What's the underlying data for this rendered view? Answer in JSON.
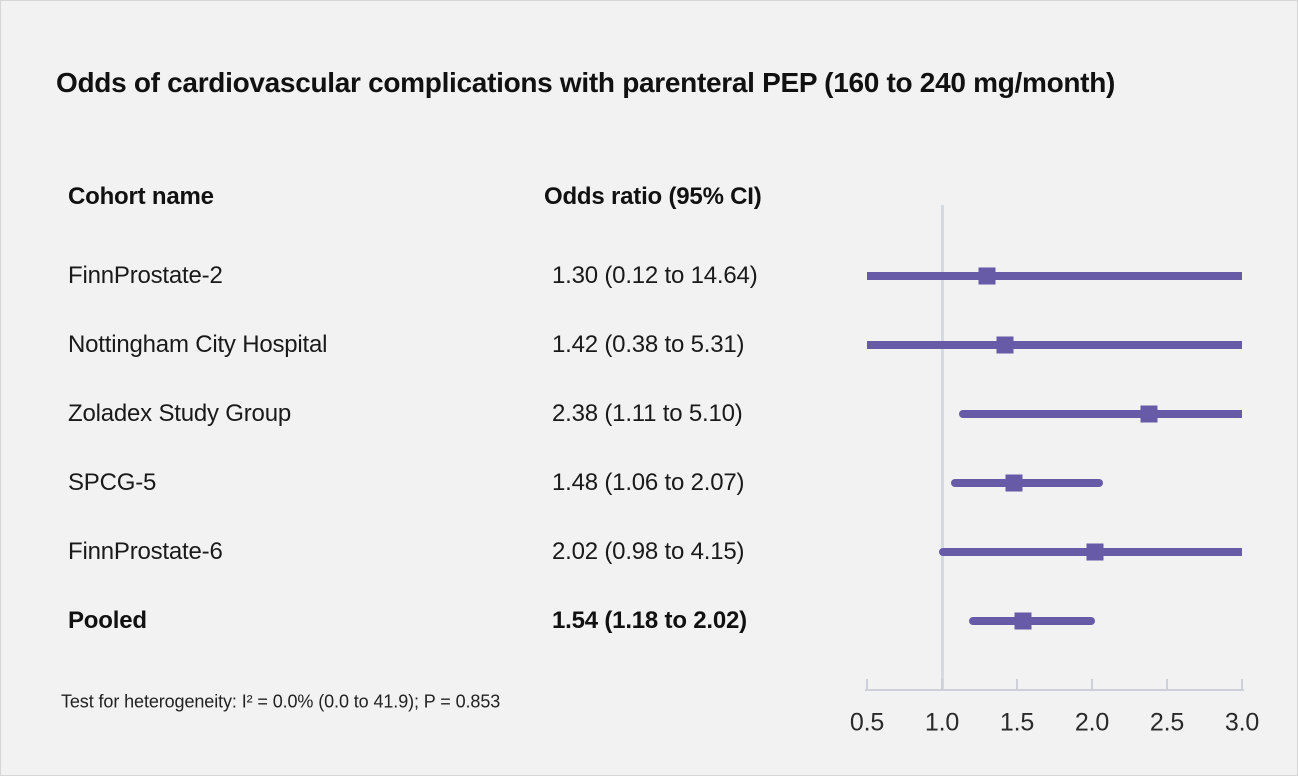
{
  "figure": {
    "footnote": "Test for heterogeneity: I² = 0.0% (0.0 to 41.9); P = 0.853"
  },
  "table": {
    "cohort_header": "Cohort name",
    "or_header": "Odds ratio (95% CI)"
  },
  "colors": {
    "accent_purple": "#675ba7",
    "reference_line": "#d5d9e2",
    "axis_line": "#cdd0d8",
    "background": "#f2f2f2",
    "text": "#1a1a1a"
  },
  "chart_data": {
    "type": "scatter",
    "subtype": "forest-plot",
    "title": "Odds of cardiovascular complications with parenteral PEP (160 to 240 mg/month)",
    "xlabel": "",
    "ylabel": "",
    "xlim": [
      0.5,
      3.0
    ],
    "x_ticks": [
      0.5,
      1.0,
      1.5,
      2.0,
      2.5,
      3.0
    ],
    "x_tick_labels": [
      "0.5",
      "1.0",
      "1.5",
      "2.0",
      "2.5",
      "3.0"
    ],
    "reference_line_x": 1.0,
    "grid": false,
    "legend": "none",
    "marker": "square",
    "studies": [
      {
        "name": "FinnProstate-2",
        "or": 1.3,
        "ci_low": 0.12,
        "ci_high": 14.64,
        "label": "1.30 (0.12 to 14.64)",
        "pooled": false
      },
      {
        "name": "Nottingham City Hospital",
        "or": 1.42,
        "ci_low": 0.38,
        "ci_high": 5.31,
        "label": "1.42 (0.38 to 5.31)",
        "pooled": false
      },
      {
        "name": "Zoladex Study Group",
        "or": 2.38,
        "ci_low": 1.11,
        "ci_high": 5.1,
        "label": "2.38 (1.11 to 5.10)",
        "pooled": false
      },
      {
        "name": "SPCG-5",
        "or": 1.48,
        "ci_low": 1.06,
        "ci_high": 2.07,
        "label": "1.48 (1.06 to 2.07)",
        "pooled": false
      },
      {
        "name": "FinnProstate-6",
        "or": 2.02,
        "ci_low": 0.98,
        "ci_high": 4.15,
        "label": "2.02 (0.98 to 4.15)",
        "pooled": false
      },
      {
        "name": "Pooled",
        "or": 1.54,
        "ci_low": 1.18,
        "ci_high": 2.02,
        "label": "1.54 (1.18 to 2.02)",
        "pooled": true
      }
    ]
  }
}
